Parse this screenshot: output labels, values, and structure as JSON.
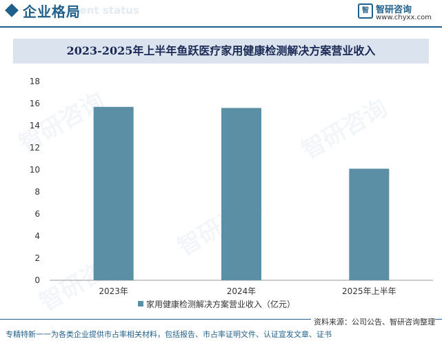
{
  "header": {
    "section_title": "企业格局",
    "section_title_bg": "ment status",
    "logo_mark": "智",
    "logo_name": "智研咨询",
    "logo_url": "www.chyxx.com"
  },
  "watermark_text": "智研咨询",
  "chart_data": {
    "type": "bar",
    "title": "2023-2025年上半年鱼跃医疗家用健康检测解决方案营业收入",
    "categories": [
      "2023年",
      "2024年",
      "2025年上半年"
    ],
    "series": [
      {
        "name": "家用健康检测解决方案营业收入（亿元）",
        "values": [
          15.7,
          15.6,
          10.1
        ],
        "color": "#5b8fa5"
      }
    ],
    "ylim": [
      0,
      18
    ],
    "yticks": [
      0,
      2,
      4,
      6,
      8,
      10,
      12,
      14,
      16,
      18
    ],
    "xlabel": "",
    "ylabel": "",
    "grid": false,
    "legend_position": "bottom"
  },
  "footer": {
    "source": "资料来源：公司公告、智研咨询整理",
    "note": "专精特新一一为各类企业提供市占率相关材料，包括报告、市占率证明文件、认证宣发文章、证书"
  }
}
